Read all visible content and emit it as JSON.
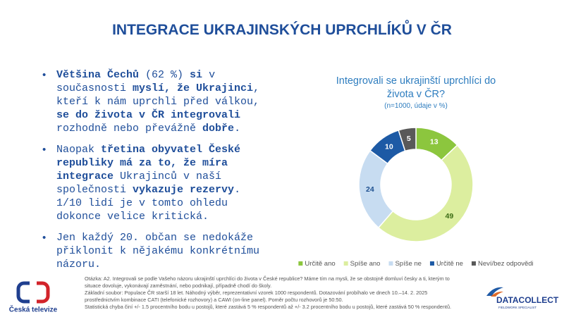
{
  "slide": {
    "title": "INTEGRACE UKRAJINSKÝCH UPRCHLÍKŮ V ČR",
    "bullets": [
      [
        {
          "text": "Většina Čechů",
          "bold": true
        },
        {
          "text": " (62 %) ",
          "bold": false
        },
        {
          "text": "si",
          "bold": true
        },
        {
          "text": " v současnosti ",
          "bold": false
        },
        {
          "text": "myslí, že Ukrajinci",
          "bold": true
        },
        {
          "text": ", kteří k nám uprchli před válkou, ",
          "bold": false
        },
        {
          "text": "se do života v ČR integrovali",
          "bold": true
        },
        {
          "text": " rozhodně nebo převážně ",
          "bold": false
        },
        {
          "text": "dobře",
          "bold": true
        },
        {
          "text": ".",
          "bold": false
        }
      ],
      [
        {
          "text": "Naopak ",
          "bold": false
        },
        {
          "text": "třetina obyvatel České republiky má za to, že míra integrace",
          "bold": true
        },
        {
          "text": " Ukrajinců v naší společnosti ",
          "bold": false
        },
        {
          "text": "vykazuje rezervy",
          "bold": true
        },
        {
          "text": ". 1/10 lidí je v tomto ohledu dokonce velice kritická.",
          "bold": false
        }
      ],
      [
        {
          "text": "Jen každý 20. občan se nedokáže přiklonit k nějakému konkrétnímu názoru.",
          "bold": false
        }
      ]
    ],
    "footnote": [
      "Otázka: A2. Integrovali se podle Vašeho názoru ukrajinští uprchlíci do života v České republice?  Máme tím na mysli, že se obstojně domluví česky a ti, kterým to",
      "situace dovoluje, vykonávají zaměstnání, nebo podnikají, případně chodí do školy.",
      "Základní soubor: Populace ČR starší 18 let. Náhodný výběr, reprezentativní vzorek 1000 respondentů. Dotazování probíhalo ve dnech 10.–14. 2. 2025",
      "prostřednictvím kombinace CATI (telefonické rozhovory) a CAWI (on-line panel). Poměr počtu rozhovorů je 50:50.",
      "Statistická chyba činí +/- 1.5 procentního bodu u postojů, které zastává 5 % respondentů až +/- 3.2 procentního bodu u postojů, které zastává 50 % respondentů."
    ],
    "logo_left": "Česká televize",
    "logo_right": "DATACOLLECT",
    "logo_right_sub": "FIELDWORK SPECIALIST"
  },
  "chart_data": {
    "type": "donut",
    "title": "Integrovali se ukrajinští uprchlíci do života v ČR?",
    "subtitle": "(n=1000, údaje v %)",
    "categories": [
      "Určitě ano",
      "Spíše ano",
      "Spíše ne",
      "Určitě ne",
      "Neví/bez odpovědi"
    ],
    "values": [
      13,
      49,
      24,
      10,
      5
    ],
    "colors": [
      "#8cc63e",
      "#dcee9f",
      "#c7dcf1",
      "#1d5aa5",
      "#595959"
    ],
    "label_colors": [
      "#ffffff",
      "#3a6b14",
      "#1d4f8f",
      "#ffffff",
      "#ffffff"
    ],
    "legend": "bottom"
  }
}
